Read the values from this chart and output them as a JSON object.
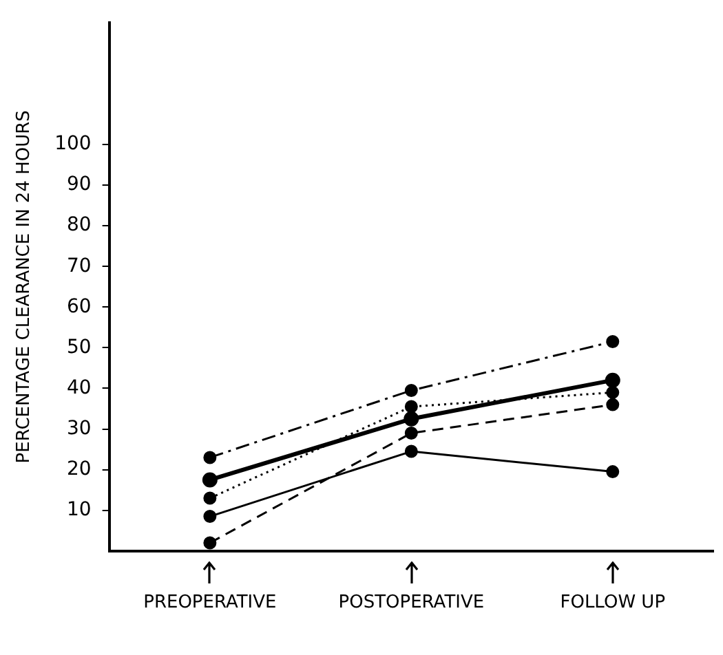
{
  "chart_data": {
    "type": "line",
    "ylabel": "PERCENTAGE CLEARANCE IN 24 HOURS",
    "categories": [
      "PREOPERATIVE",
      "POSTOPERATIVE",
      "FOLLOW UP"
    ],
    "series": [
      {
        "color": "#000000",
        "line_style": "dashdot",
        "values": [
          23,
          39.5,
          51.5
        ]
      },
      {
        "color": "#000000",
        "line_style": "solid",
        "values": [
          17.5,
          32.5,
          42
        ]
      },
      {
        "color": "#000000",
        "line_style": "dotted",
        "values": [
          13,
          35.5,
          39
        ]
      },
      {
        "color": "#000000",
        "line_style": "solid",
        "values": [
          8.5,
          24.5,
          19.5
        ]
      },
      {
        "color": "#000000",
        "line_style": "dashed",
        "values": [
          2,
          29,
          36
        ]
      }
    ],
    "ylim": [
      0,
      130
    ],
    "yticks": [
      10,
      20,
      30,
      40,
      50,
      60,
      70,
      80,
      90,
      100
    ],
    "marker": "circle",
    "grid": false,
    "legend": false
  }
}
